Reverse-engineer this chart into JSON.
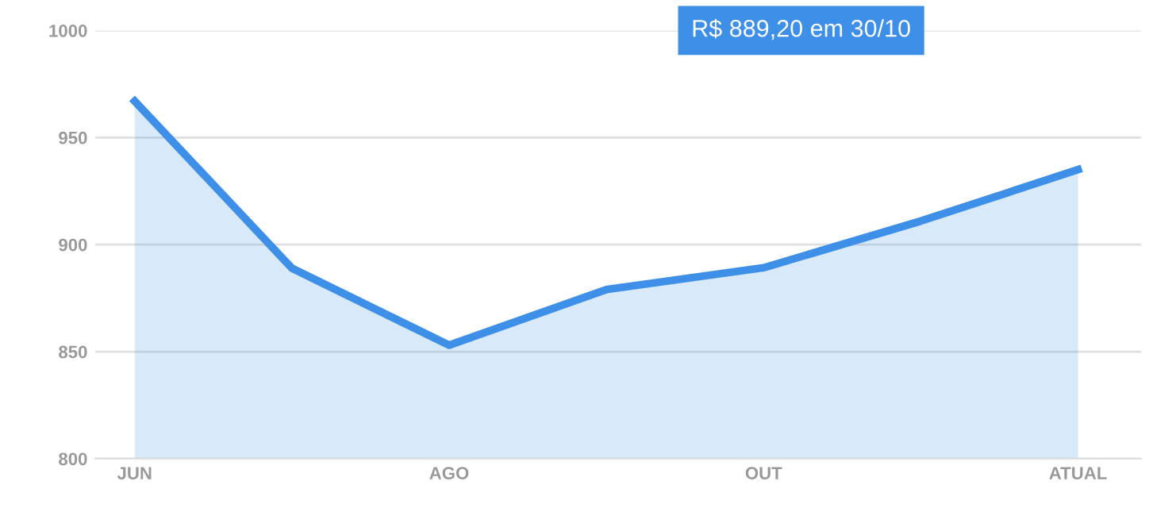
{
  "chart_data": {
    "type": "area",
    "categories": [
      "JUN",
      null,
      "AGO",
      null,
      "OUT",
      null,
      "ATUAL"
    ],
    "series": [
      {
        "color": "#3d8fe8",
        "values": [
          967,
          889,
          853,
          879,
          889.2,
          911,
          935
        ]
      }
    ],
    "ylim": [
      800,
      1000
    ],
    "yticks": [
      800,
      850,
      900,
      950,
      1000
    ],
    "grid": "y",
    "annotations": [
      "R$ 889,20 em 30/10"
    ]
  }
}
